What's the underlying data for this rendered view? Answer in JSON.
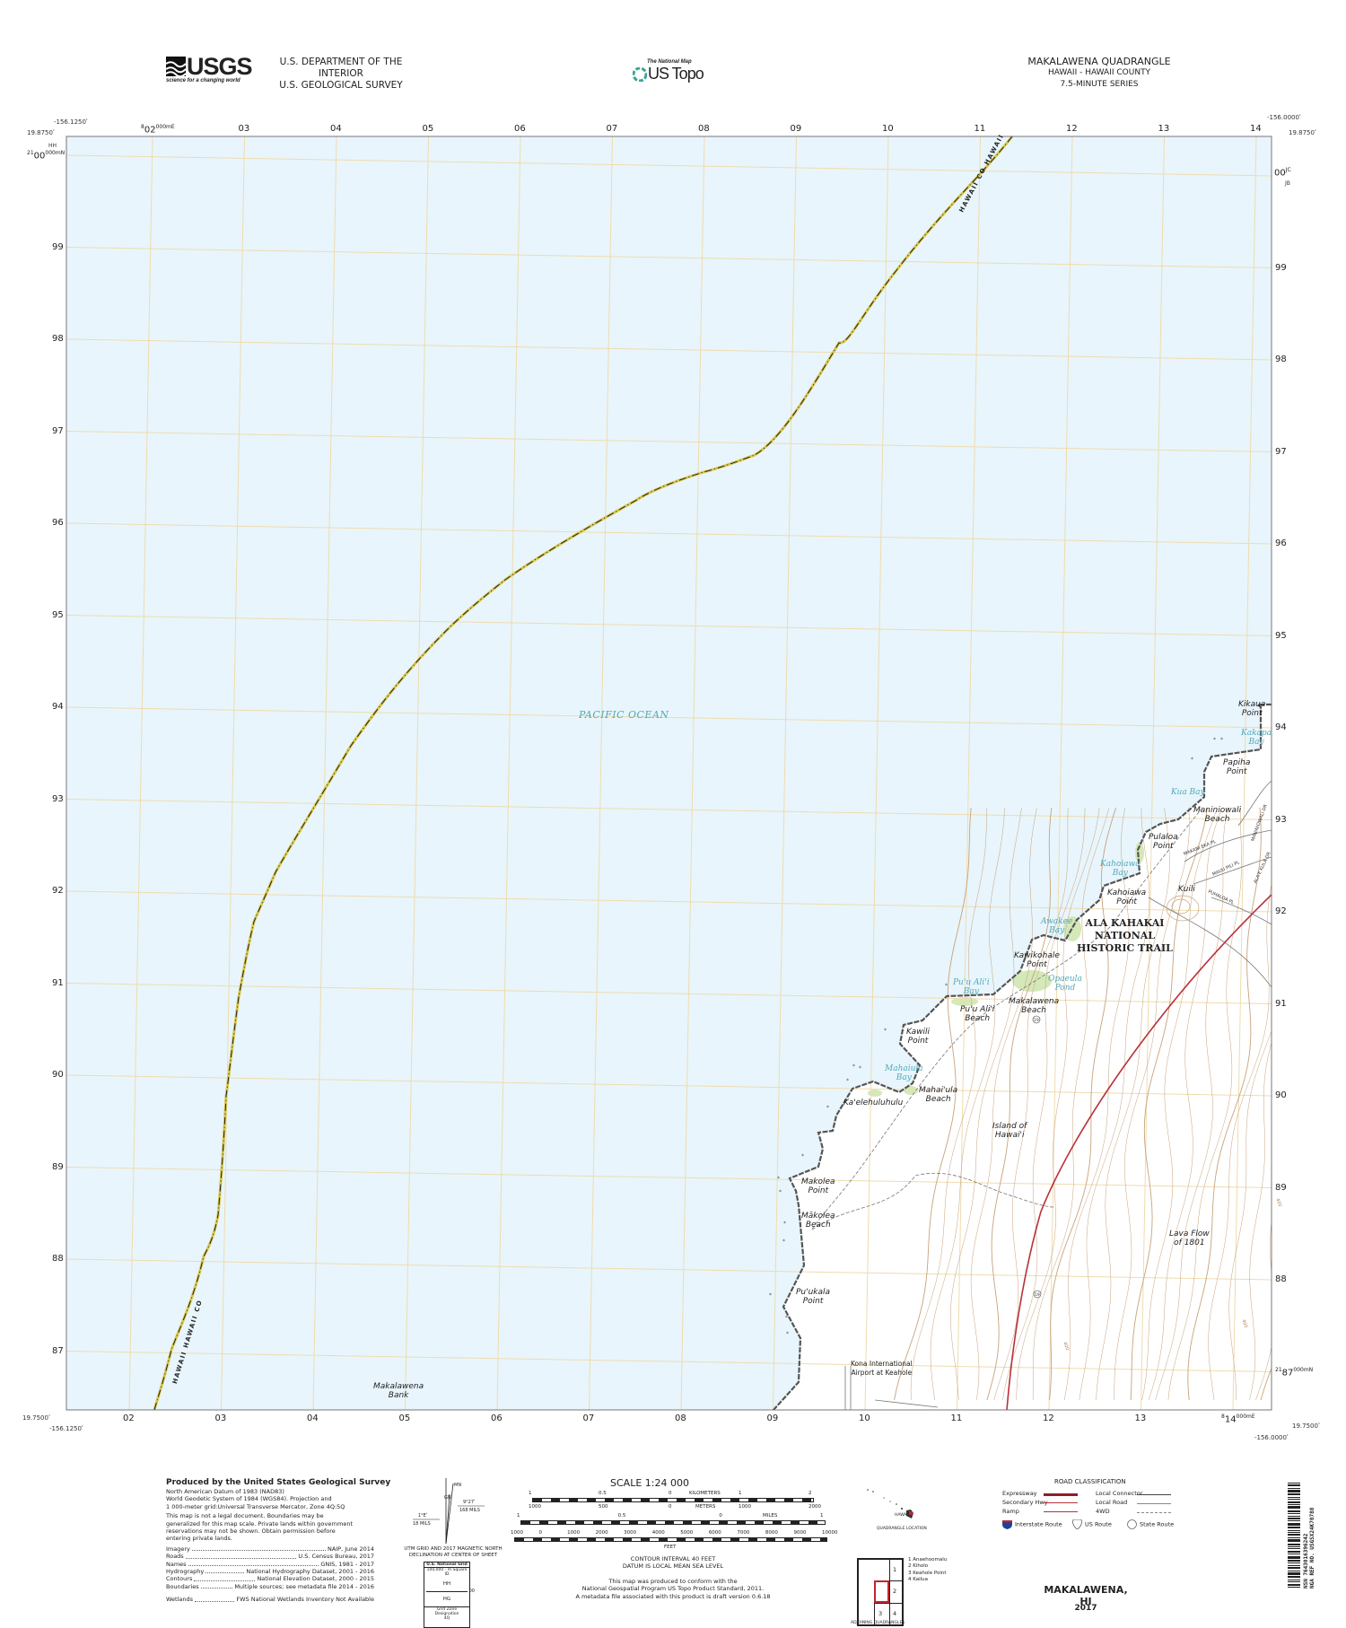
{
  "header": {
    "usgs_logo_text": "USGS",
    "usgs_tagline": "science for a changing world",
    "department": "U.S. DEPARTMENT OF THE INTERIOR",
    "survey": "U.S. GEOLOGICAL SURVEY",
    "national_map_small": "The National Map",
    "us_topo": "US Topo",
    "quad_title": "MAKALAWENA QUADRANGLE",
    "state_county": "HAWAII - HAWAII COUNTY",
    "series": "7.5-MINUTE SERIES"
  },
  "corners": {
    "top_left_lon": "-156.1250ʹ",
    "top_left_lat": "19.8750ʹ",
    "top_right_lon": "-156.0000ʹ",
    "top_right_lat": "19.8750ʹ",
    "bottom_left_lat": "19.7500ʹ",
    "bottom_left_lon": "-156.1250ʹ",
    "bottom_right_lon": "-156.0000ʹ",
    "bottom_right_lat": "19.7500ʹ"
  },
  "grid": {
    "eastings": [
      "02",
      "03",
      "04",
      "05",
      "06",
      "07",
      "08",
      "09",
      "10",
      "11",
      "12",
      "13",
      "14"
    ],
    "easting_prefix": "8",
    "easting_suffix": "000mE",
    "northings": [
      "00",
      "99",
      "98",
      "97",
      "96",
      "95",
      "94",
      "93",
      "92",
      "91",
      "90",
      "89",
      "88",
      "87"
    ],
    "northing_prefix": "21",
    "northing_suffix": "000mN",
    "left_zone_top": "HH",
    "right_zone_top": "JC",
    "right_zone_bottom": "JB"
  },
  "map": {
    "colors": {
      "water": "#e8f5fc",
      "land": "#ffffff",
      "grid": "#efdcae",
      "coast": "#555555",
      "highway": "#b8323a",
      "contour": "#c9a27a",
      "county_line": "#d8c64a",
      "vegetation": "#d4e8b8"
    },
    "county_labels": [
      "HAWAII CO  HAWAII",
      "HAWAII  HAWAII CO"
    ],
    "ocean_label": "PACIFIC OCEAN",
    "places": {
      "kikaua_point": "Kikaua\nPoint",
      "kakapa_bay": "Kakapa\nBay",
      "papiha_point": "Papiha\nPoint",
      "kua_bay": "Kua Bay",
      "maniniowali_beach": "Maniniowali\nBeach",
      "pulaloa_point": "Pulaloa\nPoint",
      "kahoiawa_bay": "Kahoiawa\nBay",
      "kahoiawa_point": "Kahoiawa\nPoint",
      "kuili": "Kuili",
      "trail": "ALA KAHAKAI\nNATIONAL\nHISTORIC TRAIL",
      "awakee_bay": "Awakee\nBay",
      "kawikohale_point": "Kawikohale\nPoint",
      "opaeula_pond": "Opaeula\nPond",
      "makalawena_beach": "Makalawena\nBeach",
      "puu_alii_bay": "Pu'u Ali'i\nBay",
      "puu_alii_beach": "Pu'u Ali'i\nBeach",
      "kawili_point": "Kawili\nPoint",
      "mahaiula_bay": "Mahaiula\nBay",
      "mahaiula_beach": "Mahai'ula\nBeach",
      "kaelehuluhulu": "Ka'elehuluhulu",
      "island_of_hawaii": "Island of\nHawai'i",
      "makolea_point": "Makolea\nPoint",
      "makolea_beach": "Mākolea\nBeach",
      "puukala_point": "Pu'ukala\nPoint",
      "airport": "Kona International\nAirport at Keahole",
      "lava_flow": "Lava Flow\nof 1801",
      "makalawena_bank": "Makalawena\nBank"
    },
    "roads": {
      "makani_eka": "MAKANI EKA PL",
      "mauu_pili": "MAUU PILI PL",
      "maniniowali_dr": "MANINIOWALI DR",
      "alae_kula": "ALA'E KULA DR",
      "puhaloa": "PUHALOA PL"
    },
    "route_number": "19",
    "contour_label": "400"
  },
  "footer": {
    "produced_title": "Produced by the United States Geological Survey",
    "datum_lines": [
      "North American Datum of 1983 (NAD83)",
      "World Geodetic System of 1984 (WGS84).  Projection and",
      "1 000-meter grid:Universal Transverse Mercator, Zone 4Q:5Q"
    ],
    "legal_lines": [
      "This map is not a legal document. Boundaries may be",
      "generalized for this map scale. Private lands within government",
      "reservations may not be shown. Obtain permission before",
      "entering private lands."
    ],
    "sources": [
      {
        "name": "Imagery",
        "value": "NAIP, June 2014"
      },
      {
        "name": "Roads",
        "value": "U.S. Census Bureau, 2017"
      },
      {
        "name": "Names",
        "value": "GNIS, 1981 - 2017"
      },
      {
        "name": "Hydrography",
        "value": "National Hydrography Dataset, 2001 - 2016"
      },
      {
        "name": "Contours",
        "value": "National Elevation Dataset, 2000 - 2015"
      },
      {
        "name": "Boundaries",
        "value": "Multiple sources; see metadata file 2014 - 2016"
      },
      {
        "name": "Wetlands",
        "value": "FWS National Wetlands Inventory Not Available"
      }
    ],
    "declination": {
      "mn": "MN",
      "gn": "GN",
      "angle1": "9°27ʹ",
      "mils1": "168 MILS",
      "angle2": "1°Eʹ",
      "mils2": "18 MILS",
      "caption": "UTM GRID AND 2017 MAGNETIC NORTH\nDECLINATION AT CENTER OF SHEET"
    },
    "national_grid": {
      "title": "U.S. National Grid",
      "subtitle": "100,000 - m Square ID",
      "top": "HH",
      "bottom": "HG",
      "side": "00",
      "zone_title": "Grid Zone Designation",
      "zone": "4Q"
    },
    "scale": {
      "title": "SCALE 1:24 000",
      "km_ticks": [
        "1",
        "0.5",
        "0",
        "1",
        "2"
      ],
      "km_unit": "KILOMETERS",
      "m_ticks": [
        "1000",
        "500",
        "0",
        "1000",
        "2000"
      ],
      "m_unit": "METERS",
      "mi_ticks": [
        "1",
        "0.5",
        "0",
        "1"
      ],
      "mi_unit": "MILES",
      "ft_ticks": [
        "1000",
        "0",
        "1000",
        "2000",
        "3000",
        "4000",
        "5000",
        "6000",
        "7000",
        "8000",
        "9000",
        "10000"
      ],
      "ft_unit": "FEET",
      "contour": "CONTOUR INTERVAL 40 FEET",
      "datum": "DATUM IS LOCAL MEAN SEA LEVEL",
      "standard": "This map was produced to conform with the\nNational Geospatial Program US Topo Product Standard, 2011.\nA metadata file associated with this product is draft version 0.6.18"
    },
    "location": {
      "label_hawaii": "HAWAII",
      "caption": "QUADRANGLE LOCATION"
    },
    "adjoining": {
      "cells": [
        "1",
        "2",
        "3",
        "4"
      ],
      "names": [
        "1 Anaehoomalu",
        "2 Kiholo",
        "3 Keahole Point",
        "4 Kailua"
      ],
      "caption": "ADJOINING QUADRANGLES"
    },
    "roads_legend": {
      "title": "ROAD CLASSIFICATION",
      "left": [
        "Expressway",
        "Secondary Hwy",
        "Ramp"
      ],
      "right": [
        "Local Connector",
        "Local Road",
        "4WD"
      ],
      "shields": [
        "Interstate Route",
        "US Route",
        "State Route"
      ]
    },
    "sheet_name": "MAKALAWENA,  HI",
    "year": "2017",
    "barcode_text": "NSN 7643016396242\nNGA REF NO. USGSX24K70788"
  }
}
